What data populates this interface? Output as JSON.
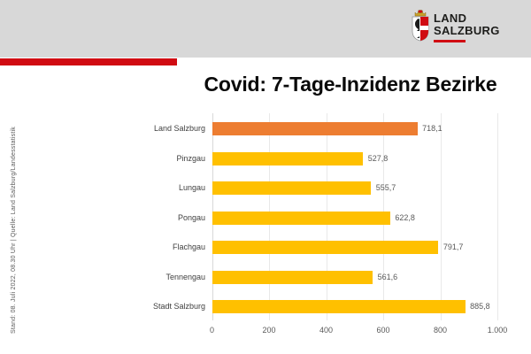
{
  "logo": {
    "line1": "LAND",
    "line2": "SALZBURG"
  },
  "title": "Covid: 7-Tage-Inzidenz Bezirke",
  "footer_note": "Stand: 08. Juli 2022, 08.30 Uhr | Quelle: Land Salzburg/Landesstatistik",
  "colors": {
    "header_gray": "#D8D8D8",
    "accent_red": "#D00B12",
    "bar_highlight": "#ED7D31",
    "bar_default": "#FFC000",
    "grid": "#E9E9E9",
    "axis": "#D9D9D9",
    "category_label": "#3F3F3F",
    "value_label": "#595959"
  },
  "chart_data": {
    "type": "bar",
    "orientation": "horizontal",
    "title": "Covid: 7-Tage-Inzidenz Bezirke",
    "categories": [
      "Land Salzburg",
      "Pinzgau",
      "Lungau",
      "Pongau",
      "Flachgau",
      "Tennengau",
      "Stadt Salzburg"
    ],
    "values": [
      718.1,
      527.8,
      555.7,
      622.8,
      791.7,
      561.6,
      885.8
    ],
    "value_labels": [
      "718,1",
      "527,8",
      "555,7",
      "622,8",
      "791,7",
      "561,6",
      "885,8"
    ],
    "highlight_index": 0,
    "xlim": [
      0,
      1000
    ],
    "x_tick_values": [
      0,
      200,
      400,
      600,
      800,
      1000
    ],
    "x_tick_labels": [
      "0",
      "200",
      "400",
      "600",
      "800",
      "1.000"
    ],
    "grid": true,
    "legend": false
  }
}
